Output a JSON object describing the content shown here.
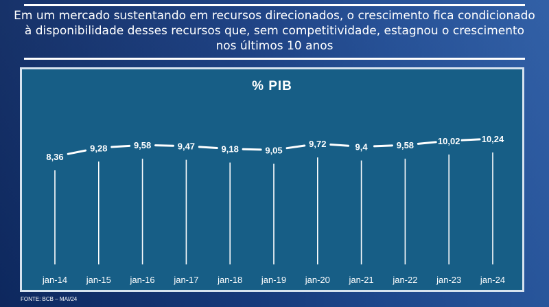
{
  "headline": "Em um mercado sustentando em recursos direcionados, o crescimento fica condicionado à disponibilidade desses recursos que, sem competitividade, estagnou o crescimento nos últimos 10 anos",
  "footer": "FONTE: BCB – MAI/24",
  "colors": {
    "background": "#1a3f84",
    "panel": "#175e86",
    "line": "#ffffff",
    "text": "#ffffff"
  },
  "chart_data": {
    "type": "line",
    "title": "% PIB",
    "categories": [
      "jan-14",
      "jan-15",
      "jan-16",
      "jan-17",
      "jan-18",
      "jan-19",
      "jan-20",
      "jan-21",
      "jan-22",
      "jan-23",
      "jan-24"
    ],
    "values": [
      8.36,
      9.28,
      9.58,
      9.47,
      9.18,
      9.05,
      9.72,
      9.4,
      9.58,
      10.02,
      10.24
    ],
    "labels": [
      "8,36",
      "9,28",
      "9,58",
      "9,47",
      "9,18",
      "9,05",
      "9,72",
      "9,4",
      "9,58",
      "10,02",
      "10,24"
    ],
    "xlabel": "",
    "ylabel": "",
    "grid": false
  }
}
